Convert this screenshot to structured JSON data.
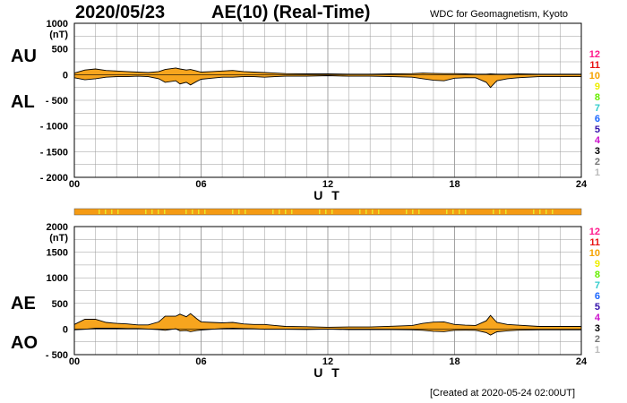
{
  "header": {
    "date": "2020/05/23",
    "title": "AE(10) (Real-Time)",
    "organization": "WDC for Geomagnetism, Kyoto"
  },
  "footer": {
    "created": "[Created at 2020-05-24 02:00UT]"
  },
  "colors": {
    "fill": "#f7a51e",
    "line": "#000000",
    "grid": "#999999",
    "status_bar": "#f59b14",
    "status_alt": "#e8e82a"
  },
  "level_legend": {
    "labels": [
      "12",
      "11",
      "10",
      "9",
      "8",
      "7",
      "6",
      "5",
      "4",
      "3",
      "2",
      "1"
    ],
    "colors": [
      "#ff1a8c",
      "#e81414",
      "#f5a300",
      "#eeee00",
      "#66ee00",
      "#33cccc",
      "#1a66ff",
      "#3311aa",
      "#cc11cc",
      "#000000",
      "#777777",
      "#bbbbbb"
    ]
  },
  "chart_data": [
    {
      "type": "area",
      "labels": {
        "upper": "AU",
        "lower": "AL"
      },
      "ylabel": "(nT)",
      "xlabel": "U T",
      "xlim": [
        0,
        24
      ],
      "ylim": [
        -2000,
        1000
      ],
      "x_ticks": [
        "00",
        "06",
        "12",
        "18",
        "24"
      ],
      "y_ticks": [
        "1000",
        "500",
        "0",
        "- 500",
        "- 1000",
        "- 1500",
        "- 2000"
      ],
      "x": [
        0,
        0.5,
        1,
        1.5,
        2,
        2.5,
        3,
        3.5,
        4,
        4.3,
        4.8,
        5,
        5.3,
        5.5,
        5.8,
        6,
        6.5,
        7,
        7.5,
        8,
        8.5,
        9,
        9.5,
        10,
        11,
        12,
        13,
        14,
        15,
        16,
        16.5,
        17,
        17.5,
        18,
        18.5,
        19,
        19.5,
        19.7,
        20,
        20.5,
        21,
        22,
        23,
        24
      ],
      "series": [
        {
          "role": "upper",
          "values": [
            30,
            90,
            110,
            80,
            70,
            60,
            50,
            40,
            60,
            100,
            130,
            110,
            90,
            100,
            70,
            50,
            60,
            70,
            80,
            60,
            50,
            40,
            30,
            20,
            15,
            15,
            10,
            10,
            15,
            20,
            30,
            25,
            20,
            20,
            15,
            10,
            10,
            15,
            10,
            10,
            15,
            10,
            10,
            10
          ]
        },
        {
          "role": "lower",
          "values": [
            -60,
            -100,
            -80,
            -50,
            -40,
            -40,
            -30,
            -40,
            -80,
            -150,
            -120,
            -180,
            -150,
            -200,
            -130,
            -90,
            -70,
            -50,
            -50,
            -40,
            -40,
            -50,
            -40,
            -30,
            -30,
            -20,
            -30,
            -30,
            -40,
            -50,
            -80,
            -110,
            -120,
            -70,
            -60,
            -60,
            -150,
            -250,
            -120,
            -80,
            -60,
            -40,
            -40,
            -40
          ]
        }
      ]
    },
    {
      "type": "area",
      "labels": {
        "upper": "AE",
        "lower": "AO"
      },
      "ylabel": "(nT)",
      "xlabel": "U T",
      "xlim": [
        0,
        24
      ],
      "ylim": [
        -500,
        2000
      ],
      "x_ticks": [
        "00",
        "06",
        "12",
        "18",
        "24"
      ],
      "y_ticks": [
        "2000",
        "1500",
        "1000",
        "500",
        "0",
        "- 500"
      ],
      "x": [
        0,
        0.5,
        1,
        1.5,
        2,
        2.5,
        3,
        3.5,
        4,
        4.3,
        4.8,
        5,
        5.3,
        5.5,
        5.8,
        6,
        6.5,
        7,
        7.5,
        8,
        8.5,
        9,
        9.5,
        10,
        11,
        12,
        13,
        14,
        15,
        16,
        16.5,
        17,
        17.5,
        18,
        18.5,
        19,
        19.5,
        19.7,
        20,
        20.5,
        21,
        22,
        23,
        24
      ],
      "series": [
        {
          "role": "upper",
          "values": [
            90,
            190,
            190,
            130,
            110,
            100,
            80,
            80,
            140,
            250,
            250,
            290,
            240,
            300,
            200,
            140,
            130,
            120,
            130,
            100,
            90,
            90,
            70,
            50,
            45,
            35,
            40,
            40,
            55,
            70,
            110,
            135,
            140,
            90,
            75,
            70,
            160,
            265,
            130,
            90,
            75,
            50,
            50,
            50
          ]
        },
        {
          "role": "lower",
          "values": [
            -15,
            -5,
            15,
            15,
            15,
            10,
            10,
            0,
            -10,
            -25,
            5,
            -35,
            -30,
            -50,
            -30,
            -20,
            -5,
            10,
            15,
            10,
            5,
            -5,
            -5,
            -5,
            -8,
            -3,
            -10,
            -10,
            -13,
            -15,
            -25,
            -43,
            -50,
            -25,
            -23,
            -25,
            -70,
            -118,
            -55,
            -35,
            -23,
            -15,
            -15,
            -15
          ]
        }
      ]
    }
  ]
}
